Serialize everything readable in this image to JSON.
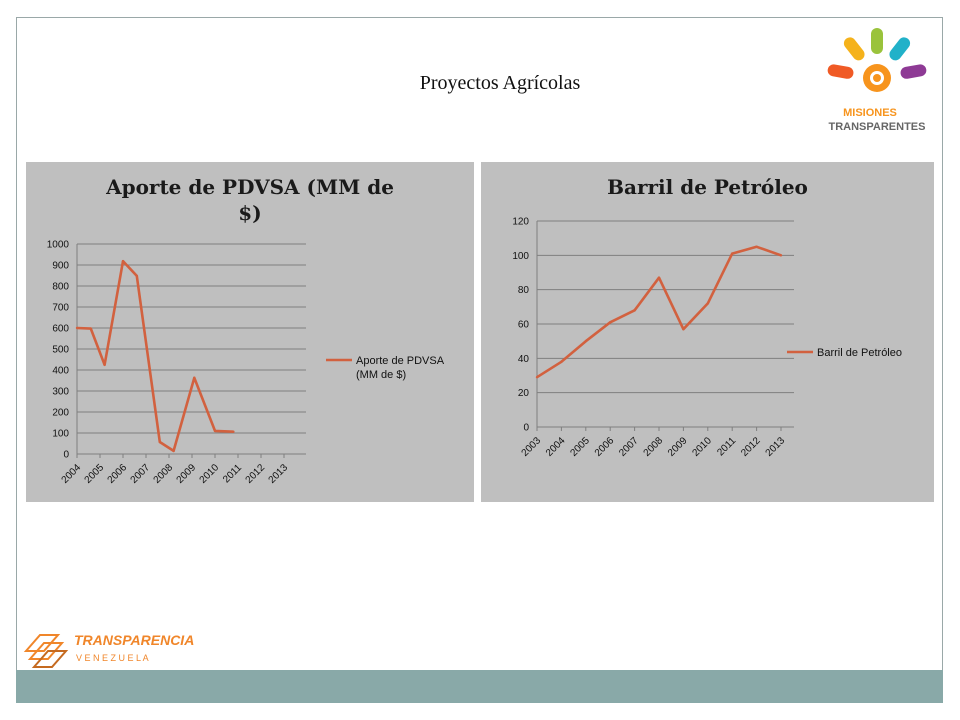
{
  "slide": {
    "title": "Proyectos Agrícolas"
  },
  "logos": {
    "top_right": {
      "line1": "MISIONES",
      "line2": "TRANSPARENTES"
    },
    "bottom_left": {
      "line1": "TRANSPARENCIA",
      "line2": "V E N E Z U E L A"
    }
  },
  "colors": {
    "series": "#d2613f",
    "panel_bg": "#bfbfbf",
    "footer": "#89a9a8"
  },
  "chart_data": [
    {
      "type": "line",
      "title": "Aporte de PDVSA (MM de $)",
      "title_lines": [
        "Aporte de PDVSA (MM de",
        "$)"
      ],
      "xlabel": "",
      "ylabel": "",
      "x_ticks": [
        "2004",
        "2005",
        "2006",
        "2007",
        "2008",
        "2009",
        "2010",
        "2011",
        "2012",
        "2013"
      ],
      "y_ticks": [
        "0",
        "100",
        "200",
        "300",
        "400",
        "500",
        "600",
        "700",
        "800",
        "900",
        "1000"
      ],
      "ylim": [
        0,
        1000
      ],
      "grid": true,
      "legend_position": "right",
      "legend_lines": [
        "Aporte de PDVSA",
        "(MM de $)"
      ],
      "series": [
        {
          "name": "Aporte de PDVSA (MM de $)",
          "x": [
            2004,
            2004.6,
            2005.2,
            2006,
            2006.6,
            2007.6,
            2008.2,
            2009.1,
            2010,
            2010.8
          ],
          "values": [
            600,
            597,
            425,
            918,
            848,
            57,
            15,
            363,
            110,
            106
          ]
        }
      ]
    },
    {
      "type": "line",
      "title": "Barril de Petróleo",
      "xlabel": "",
      "ylabel": "",
      "x_ticks": [
        "2003",
        "2004",
        "2005",
        "2006",
        "2007",
        "2008",
        "2009",
        "2010",
        "2011",
        "2012",
        "2013"
      ],
      "y_ticks": [
        "0",
        "20",
        "40",
        "60",
        "80",
        "100",
        "120"
      ],
      "ylim": [
        0,
        120
      ],
      "grid": true,
      "legend_position": "right",
      "legend_lines": [
        "Barril de Petróleo"
      ],
      "series": [
        {
          "name": "Barril de Petróleo",
          "x": [
            2003,
            2004,
            2005,
            2006,
            2007,
            2008,
            2009,
            2010,
            2011,
            2012,
            2013
          ],
          "values": [
            29,
            38,
            50,
            61,
            68,
            87,
            57,
            72,
            101,
            105,
            100
          ]
        }
      ]
    }
  ]
}
